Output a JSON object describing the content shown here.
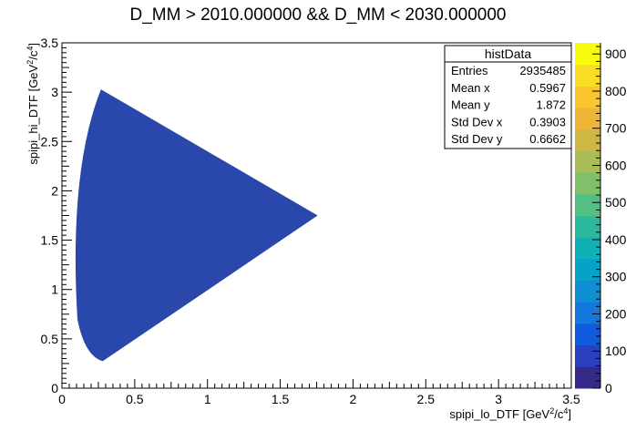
{
  "chart_data": {
    "type": "heatmap",
    "title": "D_MM > 2010.000000 && D_MM < 2030.000000",
    "xlabel": "spipi_lo_DTF [GeV",
    "xlabel_unit_sup": "2",
    "xlabel_unit_mid": "/c",
    "xlabel_unit_sup2": "4",
    "xlabel_unit_end": "]",
    "ylabel": "spipi_hi_DTF [GeV",
    "ylabel_unit_sup": "2",
    "ylabel_unit_mid": "/c",
    "ylabel_unit_sup2": "4",
    "ylabel_unit_end": "]",
    "xlim": [
      0,
      3.5
    ],
    "ylim": [
      0,
      3.5
    ],
    "xticks": [
      "0",
      "0.5",
      "1",
      "1.5",
      "2",
      "2.5",
      "3",
      "3.5"
    ],
    "yticks": [
      "0",
      "0.5",
      "1",
      "1.5",
      "2",
      "2.5",
      "3",
      "3.5"
    ],
    "fill_color": "#2a47ab",
    "region_vertices": [
      [
        0.28,
        0.28
      ],
      [
        1.75,
        1.75
      ],
      [
        0.27,
        3.02
      ]
    ],
    "colorbar": {
      "zlim": [
        0,
        930
      ],
      "ticks": [
        "0",
        "100",
        "200",
        "300",
        "400",
        "500",
        "600",
        "700",
        "800",
        "900"
      ],
      "palette": [
        "#352a87",
        "#2a3fc0",
        "#0f5cdd",
        "#1479de",
        "#0d8fd2",
        "#07a2c8",
        "#10b0b6",
        "#2bb99d",
        "#52bf85",
        "#80c06a",
        "#aabc55",
        "#cfb744",
        "#eeb536",
        "#fbc52d",
        "#f8df25",
        "#f9fb0e"
      ]
    },
    "legend": {
      "position": "top-right",
      "name": "histData",
      "rows": [
        {
          "label": "Entries",
          "value": "2935485"
        },
        {
          "label": "Mean x",
          "value": "0.5967"
        },
        {
          "label": "Mean y",
          "value": "1.872"
        },
        {
          "label": "Std Dev x",
          "value": "0.3903"
        },
        {
          "label": "Std Dev y",
          "value": "0.6662"
        }
      ]
    }
  }
}
